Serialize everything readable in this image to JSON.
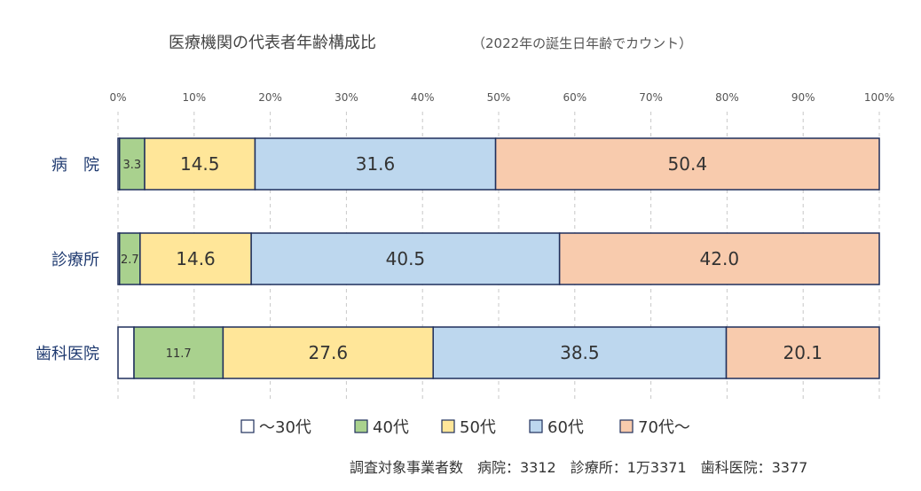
{
  "chart_data": {
    "type": "bar",
    "orientation": "horizontal",
    "stacked": true,
    "title": "医療機関の代表者年齢構成比",
    "subtitle": "（2022年の誕生日年齢でカウント）",
    "x_ticks": [
      "0%",
      "10%",
      "20%",
      "30%",
      "40%",
      "50%",
      "60%",
      "70%",
      "80%",
      "90%",
      "100%"
    ],
    "xlim": [
      0,
      100
    ],
    "grid": "vertical dashed",
    "legend_position": "bottom",
    "categories": [
      "病　院",
      "診療所",
      "歯科医院"
    ],
    "series": [
      {
        "name": "～30代",
        "color": "#ffffff",
        "values": [
          0.2,
          0.2,
          2.1
        ],
        "labels": [
          "",
          "",
          ""
        ]
      },
      {
        "name": "40代",
        "color": "#a9d18e",
        "values": [
          3.3,
          2.7,
          11.7
        ],
        "labels": [
          "3.3",
          "2.7",
          "11.7"
        ]
      },
      {
        "name": "50代",
        "color": "#ffe699",
        "values": [
          14.5,
          14.6,
          27.6
        ],
        "labels": [
          "14.5",
          "14.6",
          "27.6"
        ]
      },
      {
        "name": "60代",
        "color": "#bdd7ee",
        "values": [
          31.6,
          40.5,
          38.5
        ],
        "labels": [
          "31.6",
          "40.5",
          "38.5"
        ]
      },
      {
        "name": "70代～",
        "color": "#f8cbad",
        "values": [
          50.4,
          42.0,
          20.1
        ],
        "labels": [
          "50.4",
          "42.0",
          "20.1"
        ]
      }
    ],
    "note": "調査対象事業者数　病院：3312　診療所：1万3371　歯科医院：3377"
  }
}
